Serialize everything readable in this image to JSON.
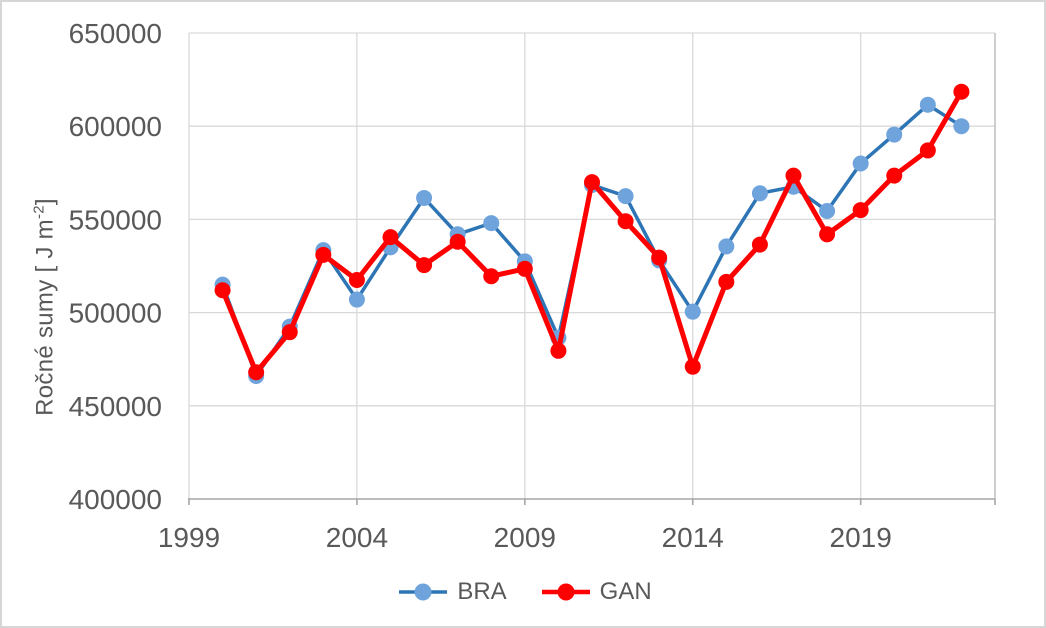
{
  "window": {
    "background_color": "#FFFFFF",
    "border_color": "#D6D6D6"
  },
  "axis_style": {
    "text_color": "#595959",
    "gridline_color": "#D9D9D9",
    "axis_line_color": "#A6A6A6",
    "plot_border_color": "#BFBFBF"
  },
  "y_axis_title": {
    "main": "Ročné sumy [ J m",
    "sup": "-2",
    "end": "]"
  },
  "chart_data": {
    "type": "line",
    "title": "",
    "xlabel": "",
    "ylabel": "Ročné sumy [ J m⁻²]",
    "x": [
      2000,
      2001,
      2002,
      2003,
      2004,
      2005,
      2006,
      2007,
      2008,
      2009,
      2010,
      2011,
      2012,
      2013,
      2014,
      2015,
      2016,
      2017,
      2018,
      2019,
      2020,
      2021,
      2022
    ],
    "series": [
      {
        "name": "BRA",
        "line_color": "#2E75B6",
        "marker_color": "#6FA3DC",
        "values": [
          515000,
          466000,
          492500,
          533500,
          507000,
          535000,
          561500,
          542000,
          548000,
          527500,
          486500,
          568500,
          562500,
          528000,
          500500,
          535500,
          564000,
          567500,
          554500,
          580000,
          595500,
          611500,
          600000
        ]
      },
      {
        "name": "GAN",
        "line_color": "#FF0000",
        "marker_color": "#FF0000",
        "values": [
          512000,
          468000,
          489500,
          531000,
          517500,
          540500,
          525500,
          538000,
          519500,
          523500,
          479500,
          570000,
          549000,
          529500,
          471000,
          516500,
          536500,
          573500,
          542000,
          555000,
          573500,
          587000,
          618500
        ]
      }
    ],
    "xlim": [
      1999,
      2023
    ],
    "ylim": [
      400000,
      650000
    ],
    "x_ticks": [
      1999,
      2004,
      2009,
      2014,
      2019
    ],
    "y_ticks": [
      400000,
      450000,
      500000,
      550000,
      600000,
      650000
    ],
    "grid": true,
    "legend_position": "bottom-center"
  }
}
